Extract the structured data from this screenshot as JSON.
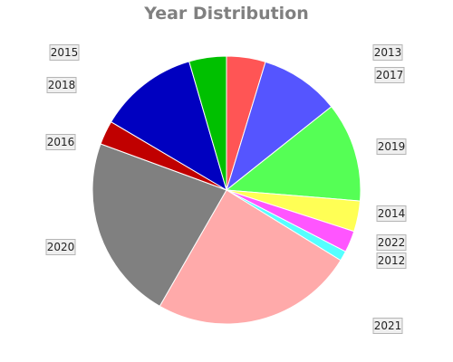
{
  "chart_data": {
    "type": "pie",
    "title": "Year Distribution",
    "start_angle_deg": 0,
    "direction": "clockwise",
    "slices": [
      {
        "label": "2013",
        "value": 4.7,
        "color": "#ff5555"
      },
      {
        "label": "2017",
        "value": 9.6,
        "color": "#5555ff"
      },
      {
        "label": "2019",
        "value": 12.0,
        "color": "#55ff55"
      },
      {
        "label": "2014",
        "value": 3.7,
        "color": "#ffff55"
      },
      {
        "label": "2022",
        "value": 2.6,
        "color": "#ff55ff"
      },
      {
        "label": "2012",
        "value": 1.2,
        "color": "#55ffff"
      },
      {
        "label": "2021",
        "value": 24.5,
        "color": "#ffaaaa"
      },
      {
        "label": "2020",
        "value": 22.3,
        "color": "#808080"
      },
      {
        "label": "2016",
        "value": 2.9,
        "color": "#c00000"
      },
      {
        "label": "2018",
        "value": 12.0,
        "color": "#0000c0"
      },
      {
        "label": "2015",
        "value": 4.5,
        "color": "#00c000"
      }
    ]
  }
}
